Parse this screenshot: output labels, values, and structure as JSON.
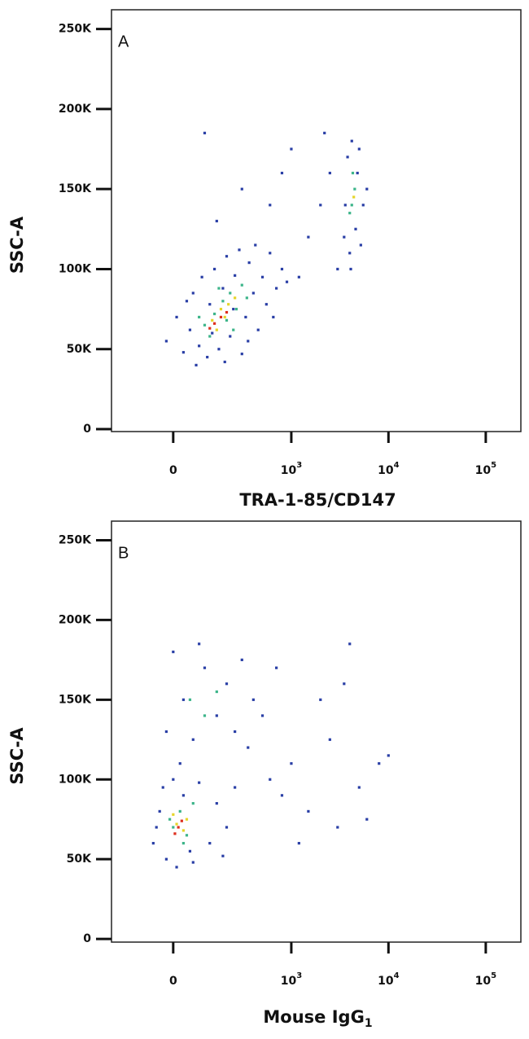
{
  "chart_data": [
    {
      "type": "scatter",
      "panel_label": "A",
      "x_label": "TRA-1-85/CD147",
      "y_label": "SSC-A",
      "xscale": "biexponential",
      "xlim": [
        -250,
        229500
      ],
      "xticks": [
        0,
        {
          "value": 1000,
          "label": "10",
          "exponent": "3"
        },
        {
          "value": 10000,
          "label": "10",
          "exponent": "4"
        },
        {
          "value": 100000,
          "label": "10",
          "exponent": "5"
        }
      ],
      "ylim": [
        -1500,
        262000
      ],
      "yticks": [
        0,
        {
          "value": 50000,
          "label": "50K"
        },
        {
          "value": 100000,
          "label": "100K"
        },
        {
          "value": 150000,
          "label": "150K"
        },
        {
          "value": 200000,
          "label": "200K"
        },
        {
          "value": 250000,
          "label": "250K"
        }
      ],
      "series": [
        {
          "color": "#2a3fa6",
          "x": [
            -20,
            10,
            30,
            50,
            60,
            80,
            90,
            110,
            120,
            140,
            160,
            180,
            200,
            220,
            250,
            280,
            300,
            330,
            360,
            400,
            450,
            500,
            550,
            600,
            700,
            800,
            900,
            40,
            70,
            130,
            190,
            240,
            350,
            420,
            650,
            1200,
            1500,
            2000,
            2500,
            800,
            300,
            150,
            1000,
            3000,
            600,
            2200,
            100,
            3500,
            3800,
            4000,
            4200,
            4600,
            5000,
            5500,
            6000,
            3600,
            4800,
            5200,
            4100
          ],
          "y": [
            55000,
            70000,
            48000,
            62000,
            85000,
            52000,
            95000,
            45000,
            78000,
            100000,
            50000,
            88000,
            108000,
            58000,
            96000,
            112000,
            47000,
            70000,
            104000,
            85000,
            62000,
            95000,
            78000,
            110000,
            88000,
            100000,
            92000,
            80000,
            40000,
            60000,
            42000,
            75000,
            55000,
            115000,
            70000,
            95000,
            120000,
            140000,
            160000,
            160000,
            150000,
            130000,
            175000,
            100000,
            140000,
            185000,
            185000,
            120000,
            170000,
            110000,
            180000,
            125000,
            175000,
            140000,
            150000,
            140000,
            160000,
            115000,
            100000
          ]
        },
        {
          "color": "#3db58a",
          "x": [
            100,
            140,
            180,
            220,
            260,
            300,
            120,
            200,
            340,
            160,
            240,
            80,
            4200,
            4500,
            4300,
            4000
          ],
          "y": [
            65000,
            72000,
            80000,
            85000,
            75000,
            90000,
            58000,
            68000,
            82000,
            88000,
            62000,
            70000,
            140000,
            150000,
            160000,
            135000
          ]
        },
        {
          "color": "#e6d52a",
          "x": [
            130,
            170,
            210,
            150,
            250,
            190,
            4400
          ],
          "y": [
            68000,
            75000,
            78000,
            62000,
            82000,
            70000,
            145000
          ]
        },
        {
          "color": "#de2f1e",
          "x": [
            140,
            170,
            120,
            200
          ],
          "y": [
            66000,
            70000,
            63000,
            73000
          ]
        }
      ]
    },
    {
      "type": "scatter",
      "panel_label": "B",
      "x_label": "Mouse IgG",
      "x_label_subscript": "1",
      "y_label": "SSC-A",
      "xscale": "biexponential",
      "xlim": [
        -250,
        229500
      ],
      "xticks": [
        0,
        {
          "value": 1000,
          "label": "10",
          "exponent": "3"
        },
        {
          "value": 10000,
          "label": "10",
          "exponent": "4"
        },
        {
          "value": 100000,
          "label": "10",
          "exponent": "5"
        }
      ],
      "ylim": [
        -2000,
        262000
      ],
      "yticks": [
        0,
        {
          "value": 50000,
          "label": "50K"
        },
        {
          "value": 100000,
          "label": "100K"
        },
        {
          "value": 150000,
          "label": "150K"
        },
        {
          "value": 200000,
          "label": "200K"
        },
        {
          "value": 250000,
          "label": "250K"
        }
      ],
      "series": [
        {
          "color": "#2a3fa6",
          "x": [
            -60,
            -40,
            -30,
            -20,
            0,
            10,
            30,
            50,
            80,
            120,
            150,
            200,
            250,
            -50,
            60,
            180,
            -20,
            0,
            30,
            60,
            100,
            150,
            200,
            250,
            300,
            400,
            500,
            20,
            350,
            80,
            700,
            1000,
            1500,
            2000,
            3000,
            4000,
            5000,
            6000,
            8000,
            10000,
            1200,
            2500,
            800,
            3500,
            600
          ],
          "y": [
            60000,
            80000,
            95000,
            50000,
            100000,
            45000,
            90000,
            55000,
            98000,
            60000,
            85000,
            70000,
            95000,
            70000,
            48000,
            52000,
            130000,
            180000,
            150000,
            125000,
            170000,
            140000,
            160000,
            130000,
            175000,
            150000,
            140000,
            110000,
            120000,
            185000,
            170000,
            110000,
            80000,
            150000,
            70000,
            185000,
            95000,
            75000,
            110000,
            115000,
            60000,
            125000,
            90000,
            160000,
            100000
          ]
        },
        {
          "color": "#3db58a",
          "x": [
            0,
            20,
            40,
            -10,
            60,
            30,
            100,
            150,
            50
          ],
          "y": [
            70000,
            80000,
            65000,
            75000,
            85000,
            60000,
            140000,
            155000,
            150000
          ]
        },
        {
          "color": "#e6d52a",
          "x": [
            10,
            30,
            0,
            40
          ],
          "y": [
            72000,
            68000,
            78000,
            75000
          ]
        },
        {
          "color": "#de2f1e",
          "x": [
            15,
            25,
            5
          ],
          "y": [
            70000,
            74000,
            66000
          ]
        }
      ]
    }
  ]
}
